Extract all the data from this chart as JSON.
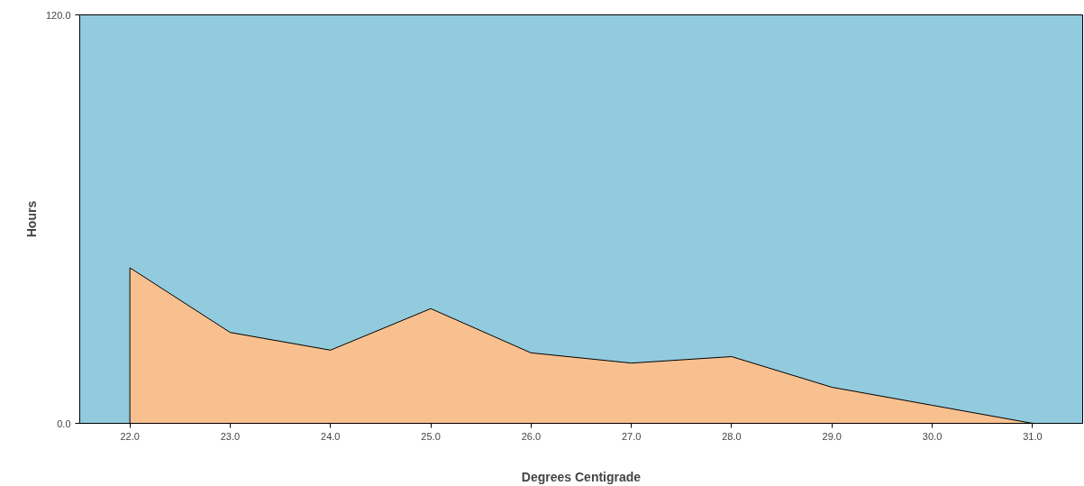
{
  "chart_data": {
    "type": "area",
    "xlabel": "Degrees Centigrade",
    "ylabel": "Hours",
    "categories": [
      "22.0",
      "23.0",
      "24.0",
      "25.0",
      "26.0",
      "27.0",
      "28.0",
      "29.0",
      "30.0",
      "31.0"
    ],
    "series": [
      {
        "color": "#f9c08f",
        "values": [
          45.7,
          26.7,
          21.5,
          33.7,
          20.7,
          17.7,
          19.6,
          10.6,
          5.3,
          0
        ]
      }
    ],
    "ylim": [
      0,
      120
    ],
    "yticks": [
      {
        "value": 0,
        "label": "0.0"
      },
      {
        "value": 120,
        "label": "120.0"
      }
    ],
    "grid": false
  }
}
